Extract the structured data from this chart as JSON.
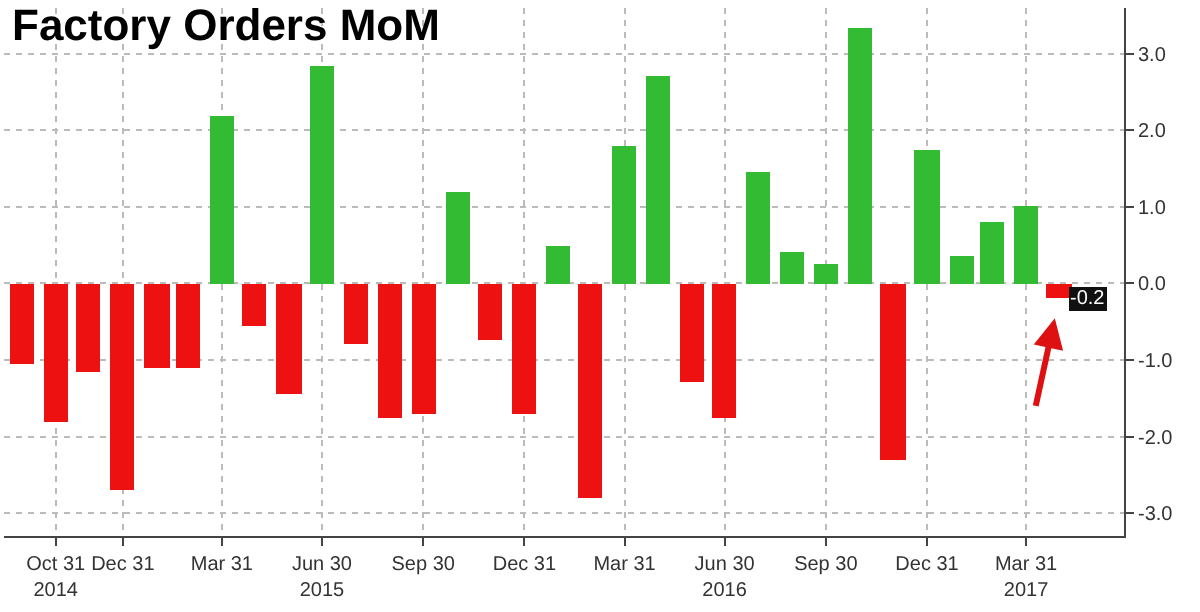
{
  "chart_data": {
    "type": "bar",
    "title": "Factory Orders MoM",
    "x": [
      "2014-09-30",
      "2014-10-31",
      "2014-11-30",
      "2014-12-31",
      "2015-01-31",
      "2015-02-28",
      "2015-03-31",
      "2015-04-30",
      "2015-05-31",
      "2015-06-30",
      "2015-07-31",
      "2015-08-31",
      "2015-09-30",
      "2015-10-31",
      "2015-11-30",
      "2015-12-31",
      "2016-01-31",
      "2016-02-29",
      "2016-03-31",
      "2016-04-30",
      "2016-05-31",
      "2016-06-30",
      "2016-07-31",
      "2016-08-31",
      "2016-09-30",
      "2016-10-31",
      "2016-11-30",
      "2016-12-31",
      "2017-01-31",
      "2017-02-28",
      "2017-03-31",
      "2017-04-30"
    ],
    "values": [
      -1.05,
      -1.8,
      -1.15,
      -2.7,
      -1.1,
      -1.1,
      2.2,
      -0.55,
      -1.45,
      2.85,
      -0.8,
      -1.75,
      -1.7,
      1.2,
      -0.75,
      -1.7,
      0.5,
      -2.8,
      1.8,
      2.7,
      -1.3,
      -1.75,
      1.45,
      0.4,
      0.25,
      3.35,
      -2.3,
      1.75,
      0.35,
      0.8,
      1.0,
      -0.2
    ],
    "colors": [
      "#ee1111",
      "#ee1111",
      "#ee1111",
      "#ee1111",
      "#ee1111",
      "#ee1111",
      "#33bb33",
      "#ee1111",
      "#ee1111",
      "#33bb33",
      "#ee1111",
      "#ee1111",
      "#ee1111",
      "#33bb33",
      "#ee1111",
      "#ee1111",
      "#33bb33",
      "#ee1111",
      "#33bb33",
      "#33bb33",
      "#ee1111",
      "#ee1111",
      "#33bb33",
      "#33bb33",
      "#33bb33",
      "#33bb33",
      "#ee1111",
      "#33bb33",
      "#33bb33",
      "#33bb33",
      "#33bb33",
      "#ee1111"
    ],
    "xlim": [
      "2014-09-14",
      "2017-06-28"
    ],
    "xticks": [
      {
        "value": "2014-10-31",
        "label": "Oct 31\n2014"
      },
      {
        "value": "2014-12-31",
        "label": "Dec 31"
      },
      {
        "value": "2015-03-31",
        "label": "Mar 31"
      },
      {
        "value": "2015-06-30",
        "label": "Jun 30\n2015"
      },
      {
        "value": "2015-09-30",
        "label": "Sep 30"
      },
      {
        "value": "2015-12-31",
        "label": "Dec 31"
      },
      {
        "value": "2016-03-31",
        "label": "Mar 31"
      },
      {
        "value": "2016-06-30",
        "label": "Jun 30\n2016"
      },
      {
        "value": "2016-09-30",
        "label": "Sep 30"
      },
      {
        "value": "2016-12-31",
        "label": "Dec 31"
      },
      {
        "value": "2017-03-31",
        "label": "Mar 31\n2017"
      }
    ],
    "ylim": [
      -3.3,
      3.6
    ],
    "yticks": [
      {
        "value": -3,
        "label": "-3.0"
      },
      {
        "value": -2,
        "label": "-2.0"
      },
      {
        "value": -1,
        "label": "-1.0"
      },
      {
        "value": 0,
        "label": "0.0"
      },
      {
        "value": 1,
        "label": "1.0"
      },
      {
        "value": 2,
        "label": "2.0"
      },
      {
        "value": 3,
        "label": "3.0"
      }
    ],
    "value_labels": [
      null,
      null,
      null,
      null,
      null,
      null,
      null,
      null,
      null,
      null,
      null,
      null,
      null,
      null,
      null,
      null,
      null,
      null,
      null,
      null,
      null,
      null,
      null,
      null,
      null,
      null,
      null,
      null,
      null,
      null,
      null,
      "-0.2"
    ],
    "grid": true
  }
}
